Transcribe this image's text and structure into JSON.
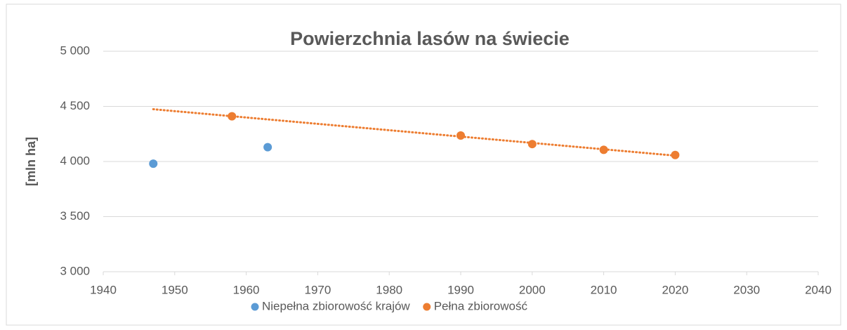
{
  "chart_data": {
    "type": "scatter",
    "title": "Powierzchnia lasów na świecie",
    "y_label": "[mln ha]",
    "series": [
      {
        "name": "Niepełna zbiorowość krajów",
        "color": "#5b9bd5",
        "x": [
          1947,
          1963
        ],
        "values": [
          3980,
          4130
        ]
      },
      {
        "name": "Pełna zbiorowość",
        "color": "#ed7d31",
        "x": [
          1958,
          1990,
          2000,
          2010,
          2020
        ],
        "values": [
          4410,
          4236,
          4158,
          4106,
          4059
        ]
      }
    ],
    "trendline": {
      "series": 1,
      "x": [
        1947,
        2020
      ]
    },
    "xlim": [
      1940,
      2040
    ],
    "xticks": [
      1940,
      1950,
      1960,
      1970,
      1980,
      1990,
      2000,
      2010,
      2020,
      2030,
      2040
    ],
    "ylim": [
      3000,
      5000
    ],
    "yticks": [
      {
        "value": 3000,
        "label": "3 000"
      },
      {
        "value": 3500,
        "label": "3 500"
      },
      {
        "value": 4000,
        "label": "4 000"
      },
      {
        "value": 4500,
        "label": "4 500"
      },
      {
        "value": 5000,
        "label": "5 000"
      }
    ],
    "grid": true,
    "legend": "bottom"
  }
}
